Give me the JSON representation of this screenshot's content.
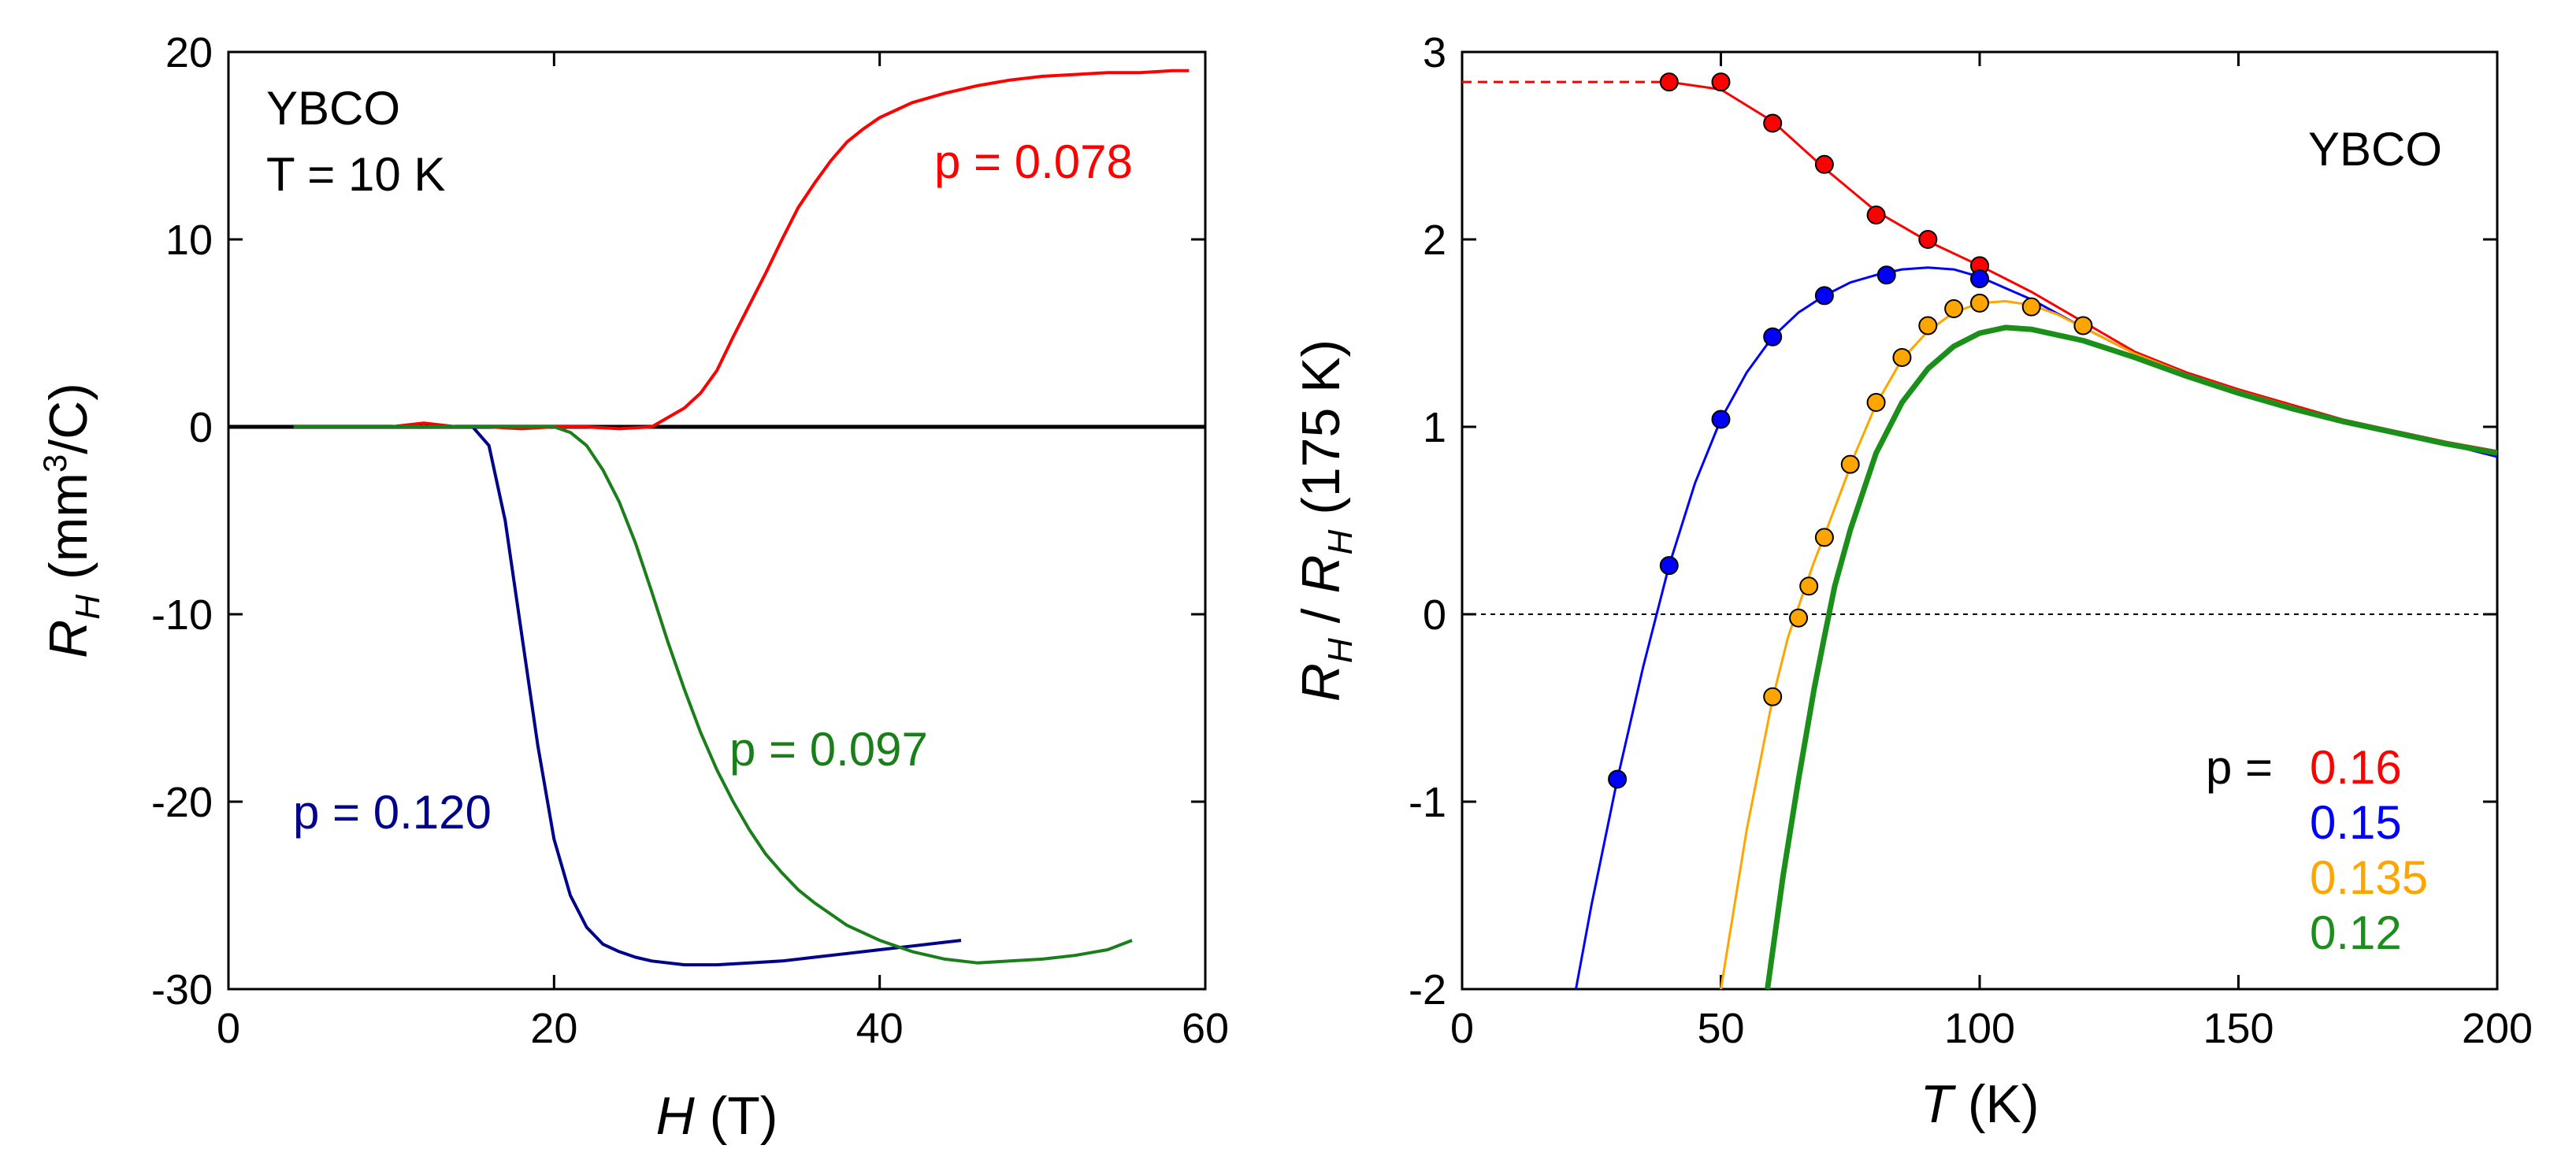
{
  "chart_data": [
    {
      "type": "line",
      "panel": "left",
      "xlabel_italic": "H",
      "xlabel_unit": " (T)",
      "ylabel_italic": "R",
      "ylabel_sub": "H",
      "ylabel_unit_pre": " (mm",
      "ylabel_unit_sup": "3",
      "ylabel_unit_post": "/C)",
      "xlim": [
        0,
        60
      ],
      "ylim": [
        -30,
        20
      ],
      "xticks": [
        0,
        20,
        40,
        60
      ],
      "yticks": [
        -30,
        -20,
        -10,
        0,
        10,
        20
      ],
      "zero_line": true,
      "annotations": {
        "material": "YBCO",
        "temperature": "T = 10 K"
      },
      "series": [
        {
          "name": "p = 0.078",
          "color": "#ff0000",
          "x": [
            4,
            6,
            8,
            10,
            12,
            14,
            16,
            18,
            20,
            22,
            24,
            26,
            27,
            28,
            29,
            30,
            31,
            32,
            33,
            34,
            35,
            36,
            37,
            38,
            39,
            40,
            42,
            44,
            46,
            48,
            50,
            52,
            54,
            56,
            58,
            59
          ],
          "y": [
            0,
            0,
            0,
            0,
            0.2,
            0,
            0,
            -0.1,
            0,
            0,
            -0.1,
            0,
            0.5,
            1,
            1.8,
            3,
            4.8,
            6.5,
            8.2,
            10,
            11.7,
            13,
            14.2,
            15.2,
            15.9,
            16.5,
            17.3,
            17.8,
            18.2,
            18.5,
            18.7,
            18.8,
            18.9,
            18.9,
            19,
            19
          ]
        },
        {
          "name": "p = 0.120",
          "color": "#00008b",
          "x": [
            4,
            8,
            12,
            15,
            16,
            17,
            18,
            19,
            20,
            21,
            22,
            23,
            24,
            25,
            26,
            28,
            30,
            32,
            34,
            36,
            38,
            40,
            42,
            44,
            45
          ],
          "y": [
            0,
            0,
            0,
            0,
            -1,
            -5,
            -11,
            -17,
            -22,
            -25,
            -26.7,
            -27.6,
            -28,
            -28.3,
            -28.5,
            -28.7,
            -28.7,
            -28.6,
            -28.5,
            -28.3,
            -28.1,
            -27.9,
            -27.7,
            -27.5,
            -27.4
          ]
        },
        {
          "name": "p = 0.097",
          "color": "#1a7f1a",
          "x": [
            4,
            8,
            12,
            16,
            20,
            21,
            22,
            23,
            24,
            25,
            26,
            27,
            28,
            29,
            30,
            31,
            32,
            33,
            34,
            35,
            36,
            38,
            40,
            42,
            44,
            46,
            48,
            50,
            52,
            54,
            55.5
          ],
          "y": [
            0,
            0,
            0,
            0,
            0,
            -0.3,
            -1,
            -2.3,
            -4,
            -6.2,
            -8.8,
            -11.5,
            -14,
            -16.3,
            -18.3,
            -20,
            -21.5,
            -22.8,
            -23.8,
            -24.7,
            -25.4,
            -26.6,
            -27.4,
            -28,
            -28.4,
            -28.6,
            -28.5,
            -28.4,
            -28.2,
            -27.9,
            -27.4
          ]
        }
      ],
      "labels": [
        {
          "text": "p = 0.078",
          "color": "#ff0000"
        },
        {
          "text": "p = 0.097",
          "color": "#1a7f1a"
        },
        {
          "text": "p = 0.120",
          "color": "#00008b"
        }
      ]
    },
    {
      "type": "line+scatter",
      "panel": "right",
      "xlabel_italic": "T",
      "xlabel_unit": " (K)",
      "ylabel_italic_1": "R",
      "ylabel_sub_1": "H",
      "ylabel_slash": " / ",
      "ylabel_italic_2": "R",
      "ylabel_sub_2": "H",
      "ylabel_unit": " (175 K)",
      "xlim": [
        0,
        200
      ],
      "ylim": [
        -2,
        3
      ],
      "xticks": [
        0,
        50,
        100,
        150,
        200
      ],
      "yticks": [
        -2,
        -1,
        0,
        1,
        2,
        3
      ],
      "zero_line": "dashed",
      "title_annotation": "YBCO",
      "legend_prefix": "p =",
      "legend_position": "bottom-right",
      "red_dashed_extrapolation": {
        "x": [
          0,
          40
        ],
        "y": 2.84
      },
      "series": [
        {
          "name": "0.16",
          "color": "#ff0000",
          "curve_x": [
            40,
            50,
            60,
            70,
            80,
            90,
            100,
            110,
            120,
            130,
            140,
            150,
            160,
            170,
            180,
            190,
            200
          ],
          "curve_y": [
            2.84,
            2.8,
            2.63,
            2.38,
            2.15,
            1.99,
            1.86,
            1.72,
            1.56,
            1.4,
            1.29,
            1.2,
            1.12,
            1.04,
            0.98,
            0.92,
            0.87
          ],
          "points_x": [
            40,
            50,
            60,
            70,
            80,
            90,
            100
          ],
          "points_y": [
            2.84,
            2.84,
            2.62,
            2.4,
            2.13,
            2.0,
            1.86
          ]
        },
        {
          "name": "0.15",
          "color": "#0000ff",
          "curve_x": [
            22,
            25,
            30,
            35,
            40,
            45,
            50,
            55,
            60,
            65,
            70,
            75,
            80,
            85,
            90,
            95,
            100,
            110,
            120,
            130,
            140,
            150,
            160,
            170,
            180,
            190,
            200
          ],
          "curve_y": [
            -2.0,
            -1.55,
            -0.88,
            -0.28,
            0.26,
            0.7,
            1.04,
            1.29,
            1.48,
            1.61,
            1.7,
            1.77,
            1.81,
            1.84,
            1.85,
            1.84,
            1.8,
            1.68,
            1.53,
            1.39,
            1.28,
            1.19,
            1.11,
            1.03,
            0.97,
            0.91,
            0.84
          ],
          "points_x": [
            30,
            40,
            50,
            60,
            70,
            82,
            100
          ],
          "points_y": [
            -0.88,
            0.26,
            1.04,
            1.48,
            1.7,
            1.81,
            1.79
          ]
        },
        {
          "name": "0.135",
          "color": "#ffa500",
          "curve_x": [
            50,
            55,
            60,
            63,
            66,
            68,
            70,
            73,
            76,
            80,
            85,
            90,
            95,
            100,
            105,
            110,
            115,
            120,
            130,
            140,
            150,
            160,
            170,
            180,
            190,
            200
          ],
          "curve_y": [
            -2.0,
            -1.15,
            -0.45,
            -0.12,
            0.12,
            0.28,
            0.42,
            0.64,
            0.86,
            1.12,
            1.36,
            1.51,
            1.61,
            1.66,
            1.67,
            1.65,
            1.6,
            1.53,
            1.39,
            1.28,
            1.19,
            1.11,
            1.03,
            0.97,
            0.91,
            0.86
          ],
          "points_x": [
            60,
            65,
            67,
            70,
            75,
            80,
            85,
            90,
            95,
            100,
            110,
            120
          ],
          "points_y": [
            -0.44,
            -0.02,
            0.15,
            0.41,
            0.8,
            1.13,
            1.37,
            1.54,
            1.63,
            1.66,
            1.64,
            1.54
          ]
        },
        {
          "name": "0.12",
          "color": "#1a8f1a",
          "curve_x": [
            59,
            62,
            65,
            68,
            70,
            72,
            75,
            80,
            85,
            90,
            95,
            100,
            105,
            110,
            120,
            130,
            140,
            150,
            160,
            170,
            180,
            190,
            200
          ],
          "curve_y": [
            -2.0,
            -1.4,
            -0.88,
            -0.4,
            -0.12,
            0.15,
            0.45,
            0.86,
            1.13,
            1.31,
            1.43,
            1.5,
            1.53,
            1.52,
            1.46,
            1.37,
            1.27,
            1.18,
            1.1,
            1.03,
            0.97,
            0.91,
            0.86
          ],
          "points_x": [],
          "points_y": []
        }
      ]
    }
  ]
}
